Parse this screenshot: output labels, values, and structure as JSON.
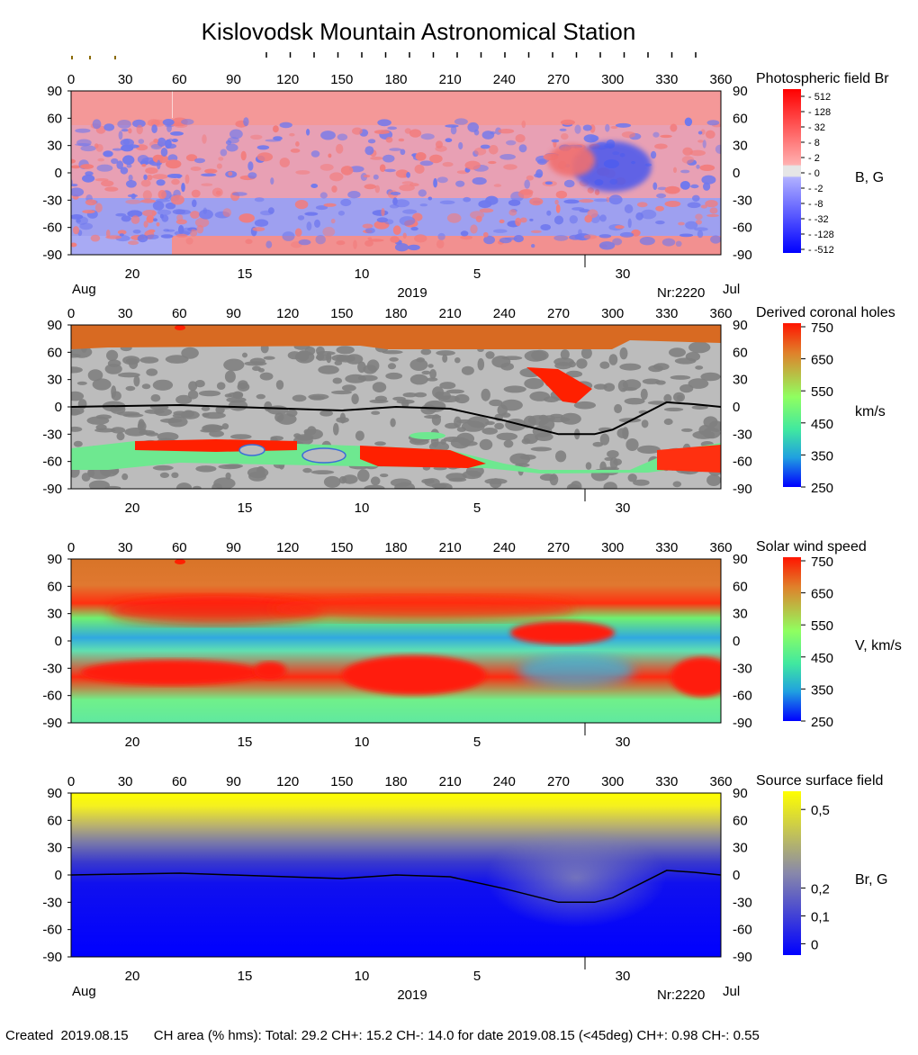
{
  "title": "Kislovodsk Mountain Astronomical Station",
  "panels": [
    {
      "name": "Photospheric field Br",
      "unit": "B, G",
      "colorbar_ticks": [
        "512",
        "128",
        "32",
        "8",
        "2",
        "0",
        "-2",
        "-8",
        "-32",
        "-128",
        "-512"
      ],
      "bottom_dates": [
        "20",
        "15",
        "10",
        "5",
        "30"
      ],
      "month_left": "Aug",
      "month_right": "Jul",
      "year": "2019",
      "rotation": "Nr:2220"
    },
    {
      "name": "Derived coronal holes",
      "unit": "km/s",
      "colorbar_ticks": [
        "750",
        "650",
        "550",
        "450",
        "350",
        "250"
      ],
      "bottom_dates": [
        "20",
        "15",
        "10",
        "5",
        "30"
      ]
    },
    {
      "name": "Solar wind speed",
      "unit": "V, km/s",
      "colorbar_ticks": [
        "750",
        "650",
        "550",
        "450",
        "350",
        "250"
      ],
      "bottom_dates": [
        "20",
        "15",
        "10",
        "5",
        "30"
      ]
    },
    {
      "name": "Source surface field",
      "unit": "Br, G",
      "colorbar_ticks": [
        "0,5",
        "0,2",
        "0,1",
        "0"
      ],
      "bottom_dates": [
        "20",
        "15",
        "10",
        "5",
        "30"
      ],
      "month_left": "Aug",
      "month_right": "Jul",
      "year": "2019",
      "rotation": "Nr:2220"
    }
  ],
  "axes": {
    "x_ticks": [
      "0",
      "30",
      "60",
      "90",
      "120",
      "150",
      "180",
      "210",
      "240",
      "270",
      "300",
      "330",
      "360"
    ],
    "y_ticks": [
      "90",
      "60",
      "30",
      "0",
      "-30",
      "-60",
      "-90"
    ]
  },
  "footer": {
    "created_label": "Created",
    "created_date": "2019.08.15",
    "ch_area": "CH area (% hms): Total: 29.2 CH+: 15.2   CH-: 14.0 for date 2019.08.15 (<45deg) CH+: 0.98    CH-: 0.55"
  },
  "chart_data": [
    {
      "type": "heatmap",
      "title": "Photospheric field Br",
      "x_range": [
        0,
        360
      ],
      "y_range": [
        -90,
        90
      ],
      "color_scale": {
        "min": -512,
        "max": 512,
        "low_color": "#0000ff",
        "zero_color": "#ffffff",
        "high_color": "#ff0000"
      }
    },
    {
      "type": "heatmap",
      "title": "Derived coronal holes",
      "x_range": [
        0,
        360
      ],
      "y_range": [
        -90,
        90
      ],
      "color_scale": {
        "min": 250,
        "max": 750
      },
      "neutral_line": {
        "x": [
          0,
          30,
          60,
          90,
          120,
          150,
          180,
          210,
          240,
          270,
          290,
          300,
          320,
          330,
          345,
          360
        ],
        "y": [
          0,
          1,
          2,
          0,
          -2,
          -4,
          0,
          -2,
          -15,
          -30,
          -30,
          -25,
          -5,
          5,
          3,
          0
        ]
      }
    },
    {
      "type": "heatmap",
      "title": "Solar wind speed",
      "x_range": [
        0,
        360
      ],
      "y_range": [
        -90,
        90
      ],
      "color_scale": {
        "min": 250,
        "max": 750
      }
    },
    {
      "type": "heatmap",
      "title": "Source surface field",
      "x_range": [
        0,
        360
      ],
      "y_range": [
        -90,
        90
      ],
      "color_scale": {
        "min": 0,
        "max": 0.5
      },
      "neutral_line": {
        "x": [
          0,
          30,
          60,
          90,
          120,
          150,
          180,
          210,
          240,
          270,
          290,
          300,
          320,
          330,
          345,
          360
        ],
        "y": [
          0,
          1,
          2,
          0,
          -2,
          -4,
          0,
          -2,
          -15,
          -30,
          -30,
          -25,
          -5,
          5,
          3,
          0
        ]
      }
    }
  ],
  "colors": {
    "ch_red": "#ff2000",
    "ch_orange": "#d86a22",
    "gray_light": "#bcbcbc",
    "gray_dark": "#808080",
    "source_yellow": "#ffff00",
    "source_blue": "#0000ff",
    "neutral_line": "#000000"
  }
}
